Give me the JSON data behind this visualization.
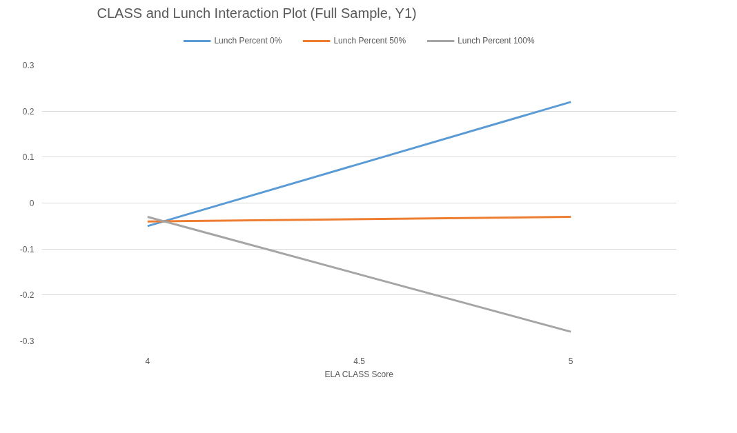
{
  "chart_data": {
    "type": "line",
    "title": "CLASS and Lunch Interaction Plot (Full Sample, Y1)",
    "xlabel": "ELA CLASS Score",
    "x": [
      4,
      5
    ],
    "series": [
      {
        "name": "Lunch Percent 0%",
        "color": "#5b9bd5",
        "values": [
          -0.05,
          0.22
        ]
      },
      {
        "name": "Lunch Percent 50%",
        "color": "#ed7d31",
        "values": [
          -0.04,
          -0.03
        ]
      },
      {
        "name": "Lunch Percent 100%",
        "color": "#a5a5a5",
        "values": [
          -0.03,
          -0.28
        ]
      }
    ],
    "xlim": [
      3.75,
      5.25
    ],
    "xticks": [
      4,
      4.5,
      5
    ],
    "ylim": [
      -0.3,
      0.3
    ],
    "yticks": [
      -0.3,
      -0.2,
      -0.1,
      0,
      0.1,
      0.2,
      0.3
    ],
    "grid": "y",
    "legend": "top",
    "marker": "none",
    "line_style": "solid"
  }
}
